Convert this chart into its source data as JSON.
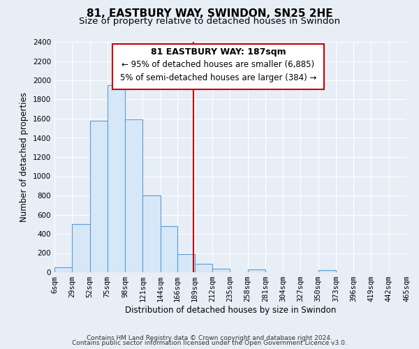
{
  "title": "81, EASTBURY WAY, SWINDON, SN25 2HE",
  "subtitle": "Size of property relative to detached houses in Swindon",
  "xlabel": "Distribution of detached houses by size in Swindon",
  "ylabel": "Number of detached properties",
  "bin_edges": [
    6,
    29,
    52,
    75,
    98,
    121,
    144,
    166,
    189,
    212,
    235,
    258,
    281,
    304,
    327,
    350,
    373,
    396,
    419,
    442,
    465
  ],
  "bar_heights": [
    50,
    500,
    1575,
    1950,
    1590,
    800,
    480,
    190,
    90,
    35,
    0,
    30,
    0,
    0,
    0,
    20,
    0,
    0,
    0,
    0
  ],
  "bar_color": "#d6e8f7",
  "bar_edgecolor": "#5b9bd5",
  "vline_x": 187,
  "vline_color": "#cc0000",
  "ylim": [
    0,
    2400
  ],
  "yticks": [
    0,
    200,
    400,
    600,
    800,
    1000,
    1200,
    1400,
    1600,
    1800,
    2000,
    2200,
    2400
  ],
  "ann_title": "81 EASTBURY WAY: 187sqm",
  "ann_line1": "← 95% of detached houses are smaller (6,885)",
  "ann_line2": "5% of semi-detached houses are larger (384) →",
  "footer1": "Contains HM Land Registry data © Crown copyright and database right 2024.",
  "footer2": "Contains public sector information licensed under the Open Government Licence v3.0.",
  "background_color": "#e8eef5",
  "plot_bg_color": "#e8eef5",
  "grid_color": "#ffffff",
  "title_fontsize": 11,
  "subtitle_fontsize": 9.5,
  "label_fontsize": 8.5,
  "tick_fontsize": 7.5,
  "ann_title_fontsize": 9,
  "ann_fontsize": 8.5,
  "footer_fontsize": 6.5
}
